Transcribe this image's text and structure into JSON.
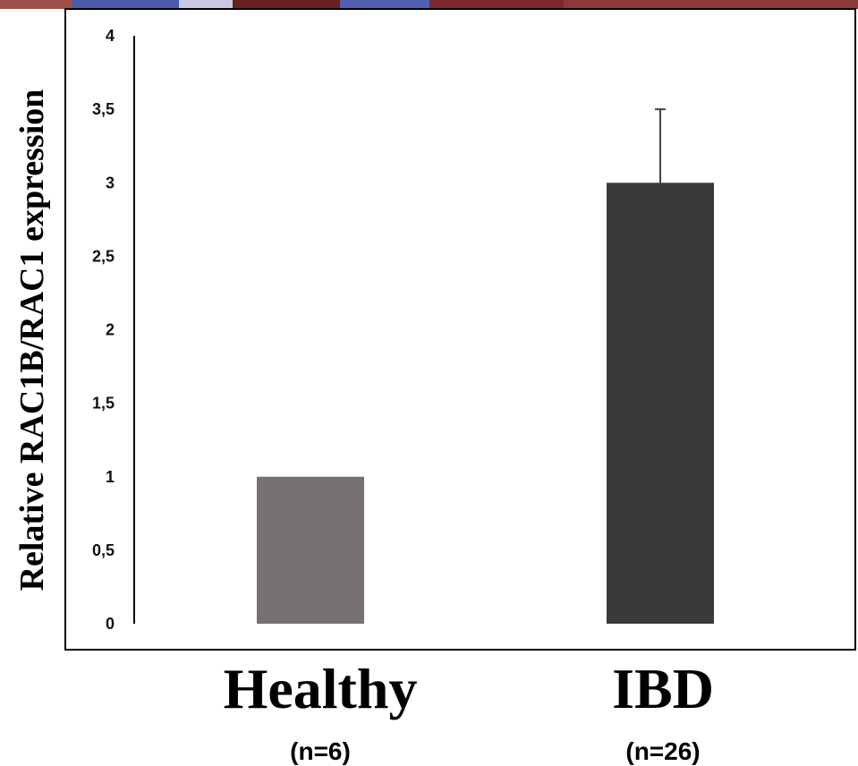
{
  "chart_data": {
    "type": "bar",
    "categories": [
      "Healthy",
      "IBD"
    ],
    "category_counts": [
      "(n=6)",
      "(n=26)"
    ],
    "values": [
      1,
      3
    ],
    "error_upper": [
      0,
      0.5
    ],
    "ylabel": "Relative RAC1B/RAC1 expression",
    "ylim": [
      0,
      4
    ],
    "yticks": [
      "0",
      "0,5",
      "1",
      "1,5",
      "2",
      "2,5",
      "3",
      "3,5",
      "4"
    ],
    "bar_colors": [
      "#757171",
      "#3a3a3a"
    ],
    "grid": false
  }
}
